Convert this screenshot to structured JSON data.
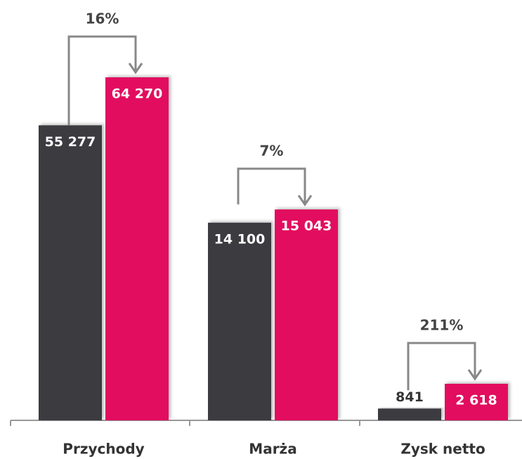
{
  "chart_data": {
    "type": "bar",
    "categories": [
      "Przychody",
      "Marża",
      "Zysk netto"
    ],
    "series": [
      {
        "color": "#3a3a3f",
        "values": [
          55277,
          14100,
          841
        ],
        "value_labels": [
          "55 277",
          "14 100",
          "841"
        ]
      },
      {
        "color": "#e2085f",
        "values": [
          64270,
          15043,
          2618
        ],
        "value_labels": [
          "64 270",
          "15 043",
          "2 618"
        ]
      }
    ],
    "annotations": [
      "16%",
      "7%",
      "211%"
    ]
  }
}
